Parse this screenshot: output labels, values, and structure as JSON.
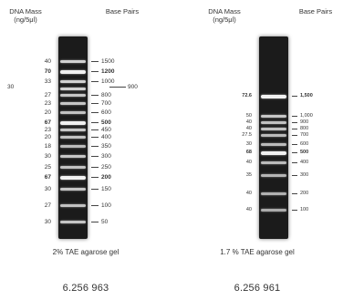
{
  "left_gel": {
    "header_mass": "DNA Mass\n(ng/5μl)",
    "header_bp": "Base Pairs",
    "caption": "2% TAE agarose gel",
    "catalog": "6.256 963",
    "side_mass": "30",
    "bands": [
      {
        "mass": "40",
        "bp": "1500",
        "bold": false,
        "bright": 0.85
      },
      {
        "mass": "70",
        "bp": "1200",
        "bold": true,
        "bright": 1.0
      },
      {
        "mass": "33",
        "bp": "1000",
        "bold": false,
        "bright": 0.85
      },
      {
        "mass": "",
        "bp": "900",
        "bold": false,
        "bright": 0.85
      },
      {
        "mass": "27",
        "bp": "800",
        "bold": false,
        "bright": 0.8
      },
      {
        "mass": "23",
        "bp": "700",
        "bold": false,
        "bright": 0.8
      },
      {
        "mass": "20",
        "bp": "600",
        "bold": false,
        "bright": 0.78
      },
      {
        "mass": "67",
        "bp": "500",
        "bold": true,
        "bright": 1.0
      },
      {
        "mass": "23",
        "bp": "450",
        "bold": false,
        "bright": 0.8
      },
      {
        "mass": "20",
        "bp": "400",
        "bold": false,
        "bright": 0.78
      },
      {
        "mass": "18",
        "bp": "350",
        "bold": false,
        "bright": 0.75
      },
      {
        "mass": "30",
        "bp": "300",
        "bold": false,
        "bright": 0.8
      },
      {
        "mass": "25",
        "bp": "250",
        "bold": false,
        "bright": 0.78
      },
      {
        "mass": "67",
        "bp": "200",
        "bold": true,
        "bright": 1.0
      },
      {
        "mass": "30",
        "bp": "150",
        "bold": false,
        "bright": 0.8
      },
      {
        "mass": "27",
        "bp": "100",
        "bold": false,
        "bright": 0.78
      },
      {
        "mass": "30",
        "bp": "50",
        "bold": false,
        "bright": 0.8
      }
    ]
  },
  "right_gel": {
    "header_mass": "DNA Mass\n(ng/5μl)",
    "header_bp": "Base Pairs",
    "caption": "1.7 % TAE agarose gel",
    "catalog": "6.256 961",
    "bands": [
      {
        "mass": "72.6",
        "bp": "1,500",
        "bold": true,
        "bright": 1.0
      },
      {
        "mass": "50",
        "bp": "1,000",
        "bold": false,
        "bright": 0.8
      },
      {
        "mass": "40",
        "bp": "900",
        "bold": false,
        "bright": 0.78
      },
      {
        "mass": "40",
        "bp": "800",
        "bold": false,
        "bright": 0.78
      },
      {
        "mass": "27.5",
        "bp": "700",
        "bold": false,
        "bright": 0.75
      },
      {
        "mass": "30",
        "bp": "600",
        "bold": false,
        "bright": 0.75
      },
      {
        "mass": "68",
        "bp": "500",
        "bold": true,
        "bright": 1.0
      },
      {
        "mass": "40",
        "bp": "400",
        "bold": false,
        "bright": 0.75
      },
      {
        "mass": "35",
        "bp": "300",
        "bold": false,
        "bright": 0.72
      },
      {
        "mass": "40",
        "bp": "200",
        "bold": false,
        "bright": 0.7
      },
      {
        "mass": "40",
        "bp": "100",
        "bold": false,
        "bright": 0.68
      }
    ]
  }
}
